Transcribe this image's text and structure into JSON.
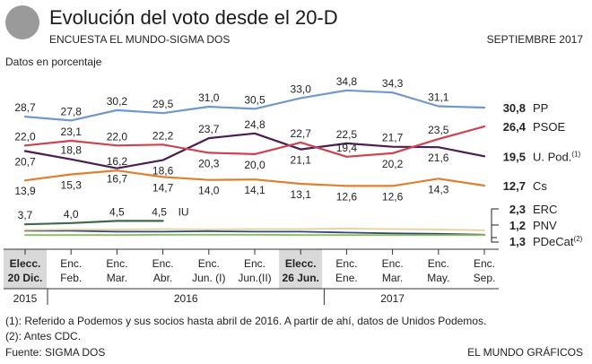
{
  "header": {
    "title": "Evolución del voto desde el 20-D",
    "subtitle": "ENCUESTA EL MUNDO-SIGMA DOS",
    "date": "SEPTIEMBRE 2017",
    "unit": "Datos en porcentaje"
  },
  "footer": {
    "note1": "(1): Referido a Podemos y sus socios hasta abril de 2016. A partir de ahí, datos de Unidos Podemos.",
    "note2": "(2): Antes CDC.",
    "source": "Fuente: SIGMA DOS",
    "credit": "EL MUNDO GRÁFICOS"
  },
  "chart_data": {
    "type": "line",
    "categories": [
      [
        "Elecc.",
        "20 Dic."
      ],
      [
        "Enc.",
        "Feb."
      ],
      [
        "Enc.",
        "Mar."
      ],
      [
        "Enc.",
        "Abr."
      ],
      [
        "Enc.",
        "Jun. (I)"
      ],
      [
        "Enc.",
        "Jun.(II)"
      ],
      [
        "Elecc.",
        "26 Jun."
      ],
      [
        "Enc.",
        "Ene."
      ],
      [
        "Enc.",
        "Mar."
      ],
      [
        "Enc.",
        "May."
      ],
      [
        "Enc.",
        "Sep."
      ]
    ],
    "highlighted_categories": [
      0,
      6
    ],
    "years": [
      {
        "label": "2015",
        "index": 0
      },
      {
        "label": "2016",
        "index": 3.5
      },
      {
        "label": "2017",
        "index": 8
      }
    ],
    "series": [
      {
        "name": "PP",
        "color": "#6f98cc",
        "values": [
          28.7,
          27.8,
          30.2,
          29.5,
          31.0,
          30.5,
          33.0,
          34.8,
          34.3,
          31.1,
          30.8
        ],
        "labels": [
          "28,7",
          "27,8",
          "30,2",
          "29,5",
          "31,0",
          "30,5",
          "33,0",
          "34,8",
          "34,3",
          "31,1",
          "30,8"
        ]
      },
      {
        "name": "PSOE",
        "color": "#cc4450",
        "values": [
          22.0,
          23.1,
          22.0,
          22.2,
          20.3,
          20.0,
          22.7,
          19.4,
          20.2,
          23.5,
          26.4
        ],
        "labels": [
          "22,0",
          "23,1",
          "22,0",
          "22,2",
          "20,3",
          "20,0",
          "22,7",
          "19,4",
          "20,2",
          "23,5",
          "26,4"
        ]
      },
      {
        "name": "U. Pod.",
        "sup": "(1)",
        "color": "#4b1d52",
        "values": [
          20.7,
          18.8,
          16.7,
          18.6,
          23.7,
          24.8,
          21.1,
          22.5,
          21.7,
          21.6,
          19.5
        ],
        "labels": [
          "20,7",
          "18,8",
          "16,7",
          "18,6",
          "23,7",
          "24,8",
          "21,1",
          "22,5",
          "21,7",
          "21,6",
          "19,5"
        ]
      },
      {
        "name": "Cs",
        "color": "#e0802e",
        "values": [
          13.9,
          15.3,
          16.2,
          14.7,
          14.0,
          14.1,
          13.1,
          12.6,
          12.6,
          14.3,
          12.7
        ],
        "labels": [
          "13,9",
          "15,3",
          "16,2",
          "14,7",
          "14,0",
          "14,1",
          "13,1",
          "12,6",
          "12,6",
          "14,3",
          "12,7"
        ]
      },
      {
        "name": "IU",
        "color": "#3c6a4a",
        "values": [
          3.7,
          4.0,
          4.5,
          4.5,
          null,
          null,
          null,
          null,
          null,
          null,
          null
        ],
        "labels": [
          "3,7",
          "4,0",
          "4,5",
          "4,5"
        ]
      },
      {
        "name": "ERC",
        "color": "#e7cf95",
        "values": [
          2.4,
          2.5,
          2.5,
          2.6,
          2.5,
          2.6,
          2.6,
          2.7,
          2.6,
          2.5,
          2.3
        ],
        "end_label": "2,3"
      },
      {
        "name": "PNV",
        "color": "#8cbf52",
        "values": [
          1.2,
          1.2,
          1.2,
          1.3,
          1.3,
          1.3,
          1.2,
          1.2,
          1.2,
          1.2,
          1.2
        ],
        "end_label": "1,2"
      },
      {
        "name": "PDeCat",
        "sup": "(2)",
        "color": "#2c4a7e",
        "values": [
          2.2,
          2.2,
          2.0,
          2.0,
          2.1,
          2.0,
          2.0,
          1.8,
          1.6,
          1.5,
          1.3
        ],
        "end_label": "1,3"
      }
    ],
    "ylim": [
      0,
      36
    ],
    "grid": false
  }
}
